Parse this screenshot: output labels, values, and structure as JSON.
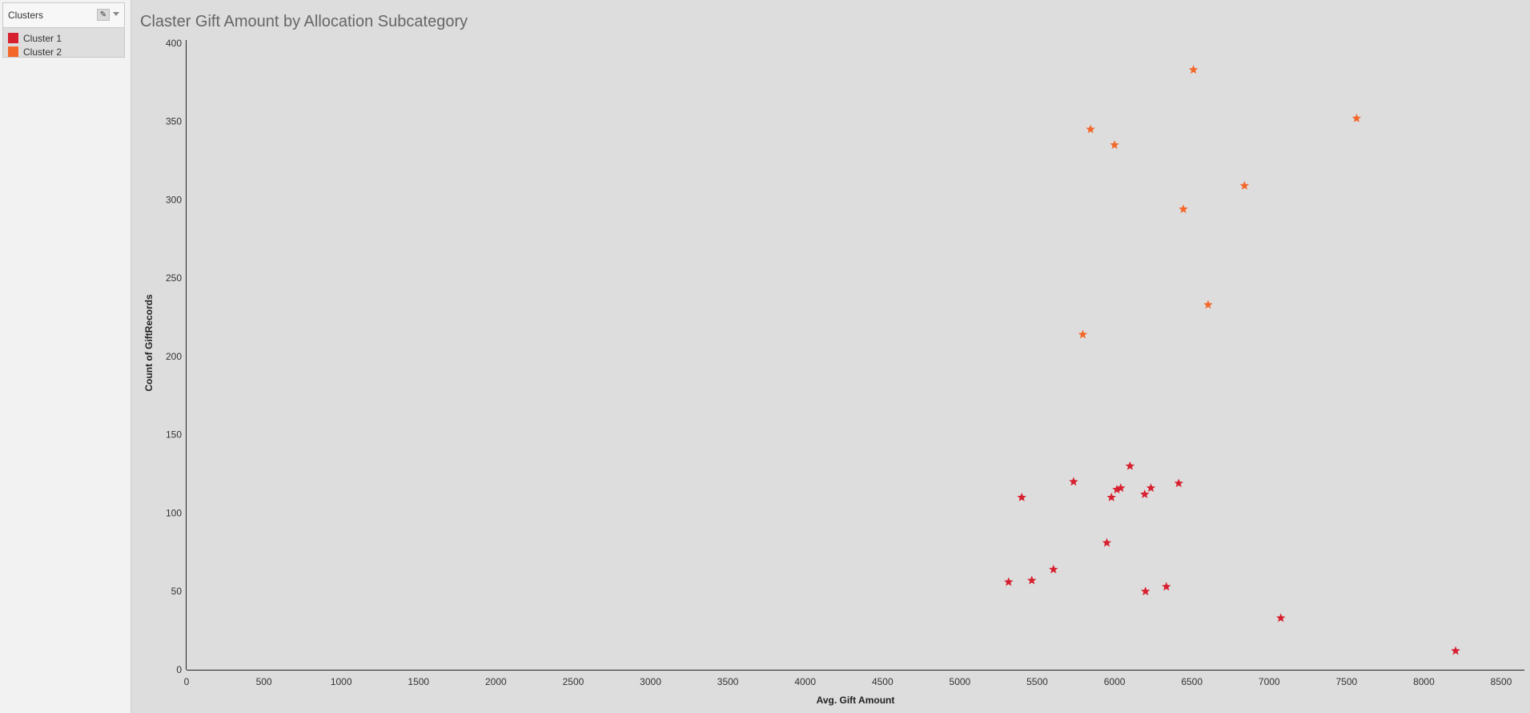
{
  "legend": {
    "title": "Clusters",
    "items": [
      {
        "label": "Cluster 1",
        "color": "#d7202f"
      },
      {
        "label": "Cluster 2",
        "color": "#f4672a"
      }
    ]
  },
  "chart_data": {
    "type": "scatter",
    "title": "Claster Gift Amount by Allocation Subcategory",
    "xlabel": "Avg. Gift Amount",
    "ylabel": "Count of GiftRecords",
    "xlim": [
      0,
      8650
    ],
    "ylim": [
      0,
      402
    ],
    "xticks": [
      0,
      500,
      1000,
      1500,
      2000,
      2500,
      3000,
      3500,
      4000,
      4500,
      5000,
      5500,
      6000,
      6500,
      7000,
      7500,
      8000,
      8500
    ],
    "yticks": [
      0,
      50,
      100,
      150,
      200,
      250,
      300,
      350,
      400
    ],
    "marker": "star",
    "grid": false,
    "series": [
      {
        "name": "Cluster 1",
        "color": "#d7202f",
        "points": [
          {
            "x": 5315,
            "y": 56
          },
          {
            "x": 5400,
            "y": 110
          },
          {
            "x": 5465,
            "y": 57
          },
          {
            "x": 5605,
            "y": 64
          },
          {
            "x": 5735,
            "y": 120
          },
          {
            "x": 5950,
            "y": 81
          },
          {
            "x": 5980,
            "y": 110
          },
          {
            "x": 6015,
            "y": 115
          },
          {
            "x": 6040,
            "y": 116
          },
          {
            "x": 6100,
            "y": 130
          },
          {
            "x": 6195,
            "y": 112
          },
          {
            "x": 6200,
            "y": 50
          },
          {
            "x": 6235,
            "y": 116
          },
          {
            "x": 6335,
            "y": 53
          },
          {
            "x": 6415,
            "y": 119
          },
          {
            "x": 7075,
            "y": 33
          },
          {
            "x": 8205,
            "y": 12
          }
        ]
      },
      {
        "name": "Cluster 2",
        "color": "#f4672a",
        "points": [
          {
            "x": 5795,
            "y": 214
          },
          {
            "x": 5845,
            "y": 345
          },
          {
            "x": 6000,
            "y": 335
          },
          {
            "x": 6445,
            "y": 294
          },
          {
            "x": 6510,
            "y": 383
          },
          {
            "x": 6605,
            "y": 233
          },
          {
            "x": 6840,
            "y": 309
          },
          {
            "x": 7565,
            "y": 352
          }
        ]
      }
    ]
  }
}
